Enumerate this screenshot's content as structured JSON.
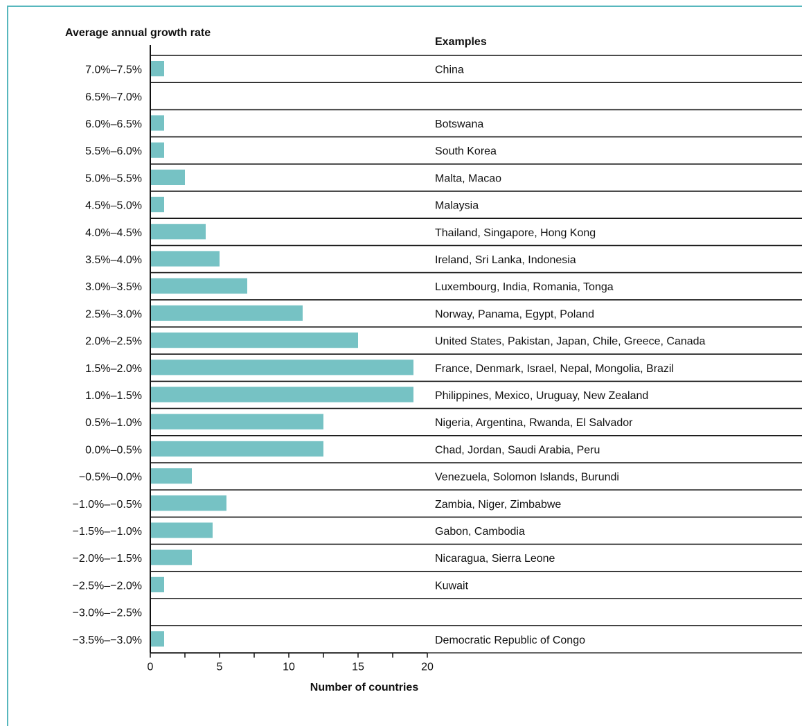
{
  "colors": {
    "bar": "#76c2c4",
    "frame": "#57b7bd",
    "line": "#111111"
  },
  "chart_data": {
    "type": "bar",
    "orientation": "horizontal",
    "ylabel": "Average annual growth rate",
    "examples_header": "Examples",
    "xlabel": "Number of countries",
    "xlim": [
      0,
      20
    ],
    "xticks": [
      "0",
      "5",
      "10",
      "15",
      "20"
    ],
    "categories": [
      "7.0%–7.5%",
      "6.5%–7.0%",
      "6.0%–6.5%",
      "5.5%–6.0%",
      "5.0%–5.5%",
      "4.5%–5.0%",
      "4.0%–4.5%",
      "3.5%–4.0%",
      "3.0%–3.5%",
      "2.5%–3.0%",
      "2.0%–2.5%",
      "1.5%–2.0%",
      "1.0%–1.5%",
      "0.5%–1.0%",
      "0.0%–0.5%",
      "−0.5%–0.0%",
      "−1.0%–−0.5%",
      "−1.5%–−1.0%",
      "−2.0%–−1.5%",
      "−2.5%–−2.0%",
      "−3.0%–−2.5%",
      "−3.5%–−3.0%"
    ],
    "values": [
      1,
      0,
      1,
      1,
      2.5,
      1,
      4,
      5,
      7,
      11,
      15,
      19,
      19,
      12.5,
      12.5,
      3,
      5.5,
      4.5,
      3,
      1,
      0,
      1
    ],
    "examples": [
      "China",
      "",
      "Botswana",
      "South Korea",
      "Malta, Macao",
      "Malaysia",
      "Thailand, Singapore, Hong Kong",
      "Ireland, Sri Lanka, Indonesia",
      "Luxembourg, India, Romania, Tonga",
      "Norway, Panama, Egypt, Poland",
      "United States, Pakistan, Japan, Chile, Greece, Canada",
      "France, Denmark, Israel, Nepal, Mongolia, Brazil",
      "Philippines, Mexico, Uruguay, New Zealand",
      "Nigeria, Argentina, Rwanda, El Salvador",
      "Chad, Jordan, Saudi Arabia, Peru",
      "Venezuela, Solomon Islands, Burundi",
      "Zambia, Niger, Zimbabwe",
      "Gabon, Cambodia",
      "Nicaragua, Sierra Leone",
      "Kuwait",
      "",
      "Democratic Republic of Congo"
    ]
  }
}
